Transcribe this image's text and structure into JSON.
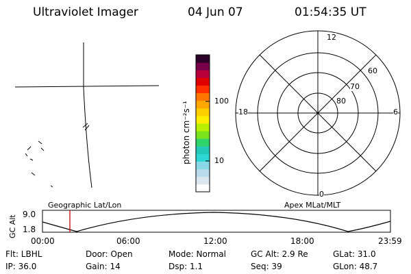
{
  "header": {
    "instrument": "Ultraviolet Imager",
    "date": "04 Jun 07",
    "time": "01:54:35 UT"
  },
  "colorbar": {
    "unit_label": "photon cm⁻²s⁻¹",
    "tick_labels": [
      "100",
      "10"
    ],
    "colors": [
      "#ffffff",
      "#dce6ee",
      "#b9dbe9",
      "#88d8e6",
      "#2fd6d6",
      "#22c8b8",
      "#2ed36a",
      "#7be31e",
      "#b7f000",
      "#ffee00",
      "#ffd000",
      "#ffa700",
      "#ff7700",
      "#ff3000",
      "#e00000",
      "#b8003a",
      "#78004a",
      "#2a0028"
    ]
  },
  "polar": {
    "mlt_labels": [
      "12",
      "18",
      "6",
      "0"
    ],
    "lat_labels": [
      "60",
      "70",
      "80"
    ]
  },
  "timeline": {
    "left_label": "Geographic Lat/Lon",
    "right_label": "Apex MLat/MLT",
    "yaxis_title": "GC Alt",
    "yaxis_ticks": [
      "9.0",
      "1.8"
    ],
    "time_ticks": [
      "00:00",
      "06:00",
      "12:00",
      "18:00",
      "23:59"
    ],
    "marker_color": "#cc0000"
  },
  "footer": {
    "flt": "Flt: LBHL",
    "door": "Door: Open",
    "mode": "Mode: Normal",
    "gc_alt": "GC Alt: 2.9 Re",
    "glat": "GLat:  31.0",
    "ip": "IP: 36.0",
    "gain": "Gain: 14",
    "dsp": "Dsp:     1.1",
    "seq": "Seq: 39",
    "glon": "GLon:  48.7"
  }
}
